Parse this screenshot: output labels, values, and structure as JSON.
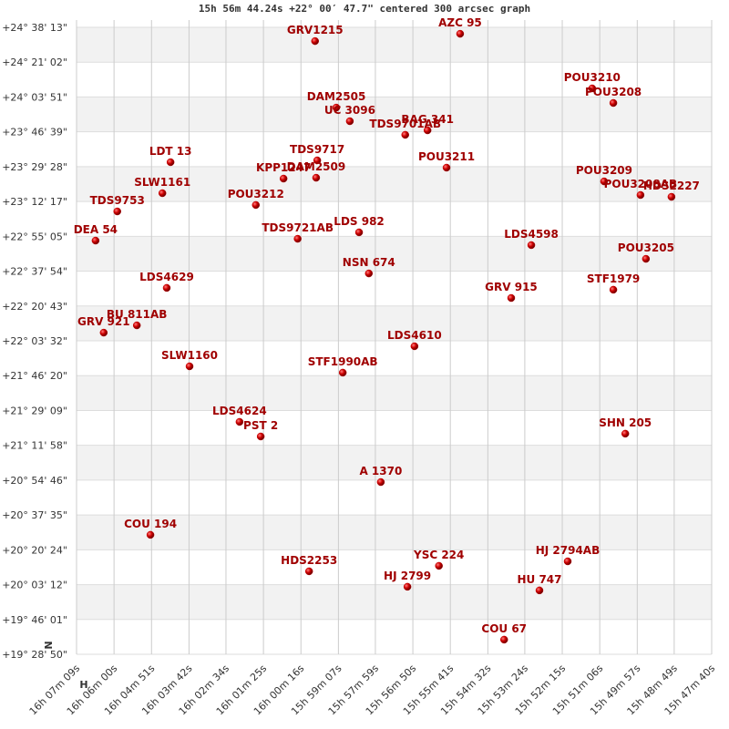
{
  "chart_data": {
    "type": "scatter",
    "title": "15h 56m 44.24s +22° 00′ 47.7\" centered 300 arcsec graph",
    "annotations": [
      "N",
      "H"
    ],
    "color": "#c00000",
    "labels": [
      "GRV1215",
      "AZC  95",
      "POU3210",
      "POU3208",
      "DAM2505",
      "UC 3096",
      "BAG 341",
      "TDS9701AB",
      "TDS9717",
      "DAM2509",
      "KPP1247",
      "LDT  13",
      "POU3211",
      "POU3209",
      "POU3208AB",
      "HDS2227",
      "SLW1161",
      "TDS9753",
      "POU3212",
      "DEA  54",
      "TDS9721AB",
      "LDS 982",
      "LDS4598",
      "POU3205",
      "NSN 674",
      "LDS4629",
      "STF1979",
      "GRV 915",
      "BU  811AB",
      "GRV 921",
      "LDS4610",
      "SLW1160",
      "STF1990AB",
      "LDS4624",
      "PST   2",
      "SHN 205",
      "A  1370",
      "COU 194",
      "HDS2253",
      "YSC 224",
      "HJ 2794AB",
      "HJ 2799",
      "HU  747",
      "COU  67"
    ],
    "x": [
      57590,
      57323,
      57080,
      57041,
      57551,
      57526,
      57383,
      57424,
      57586,
      57588,
      57648,
      57856,
      57348,
      57058,
      56991,
      56934,
      57871,
      57954,
      57699,
      57994,
      57622,
      57509,
      57192,
      56981,
      57491,
      57863,
      57041,
      57229,
      57918,
      57979,
      57407,
      57821,
      57539,
      57729,
      57690,
      57019,
      57469,
      57893,
      57601,
      57362,
      57125,
      57420,
      57177,
      57242
    ],
    "y": [
      24.524,
      24.584,
      24.135,
      24.015,
      23.977,
      23.865,
      23.79,
      23.753,
      23.543,
      23.4,
      23.393,
      23.528,
      23.483,
      23.37,
      23.258,
      23.243,
      23.273,
      23.123,
      23.176,
      22.883,
      22.898,
      22.951,
      22.846,
      22.733,
      22.613,
      22.494,
      22.479,
      22.411,
      22.186,
      22.126,
      22.014,
      21.849,
      21.797,
      21.392,
      21.272,
      21.295,
      20.897,
      20.463,
      20.163,
      20.208,
      20.245,
      20.036,
      20.006,
      19.601
    ],
    "xlim": [
      58029,
      56860
    ],
    "ylim": [
      19.4806,
      24.697
    ],
    "xticks": [
      {
        "value": 58029,
        "label": "16h 07m 09s"
      },
      {
        "value": 57960,
        "label": "16h 06m 00s"
      },
      {
        "value": 57891,
        "label": "16h 04m 51s"
      },
      {
        "value": 57822,
        "label": "16h 03m 42s"
      },
      {
        "value": 57754,
        "label": "16h 02m 34s"
      },
      {
        "value": 57685,
        "label": "16h 01m 25s"
      },
      {
        "value": 57616,
        "label": "16h 00m 16s"
      },
      {
        "value": 57547,
        "label": "15h 59m 07s"
      },
      {
        "value": 57479,
        "label": "15h 57m 59s"
      },
      {
        "value": 57410,
        "label": "15h 56m 50s"
      },
      {
        "value": 57341,
        "label": "15h 55m 41s"
      },
      {
        "value": 57272,
        "label": "15h 54m 32s"
      },
      {
        "value": 57204,
        "label": "15h 53m 24s"
      },
      {
        "value": 57135,
        "label": "15h 52m 15s"
      },
      {
        "value": 57066,
        "label": "15h 51m 06s"
      },
      {
        "value": 56997,
        "label": "15h 49m 57s"
      },
      {
        "value": 56929,
        "label": "15h 48m 49s"
      },
      {
        "value": 56860,
        "label": "15h 47m 40s"
      }
    ],
    "yticks": [
      {
        "value": 24.6369,
        "label": "+24° 38' 13\""
      },
      {
        "value": 24.3506,
        "label": "+24° 21' 02\""
      },
      {
        "value": 24.0642,
        "label": "+24° 03' 51\""
      },
      {
        "value": 23.7775,
        "label": "+23° 46' 39\""
      },
      {
        "value": 23.4911,
        "label": "+23° 29' 28\""
      },
      {
        "value": 23.2047,
        "label": "+23° 12' 17\""
      },
      {
        "value": 22.9181,
        "label": "+22° 55' 05\""
      },
      {
        "value": 22.6317,
        "label": "+22° 37' 54\""
      },
      {
        "value": 22.3453,
        "label": "+22° 20' 43\""
      },
      {
        "value": 22.0589,
        "label": "+22° 03' 32\""
      },
      {
        "value": 21.7722,
        "label": "+21° 46' 20\""
      },
      {
        "value": 21.4858,
        "label": "+21° 29' 09\""
      },
      {
        "value": 21.1994,
        "label": "+21° 11' 58\""
      },
      {
        "value": 20.9128,
        "label": "+20° 54' 46\""
      },
      {
        "value": 20.6264,
        "label": "+20° 37' 35\""
      },
      {
        "value": 20.34,
        "label": "+20° 20' 24\""
      },
      {
        "value": 20.0533,
        "label": "+20° 03' 12\""
      },
      {
        "value": 19.7669,
        "label": "+19° 46' 01\""
      },
      {
        "value": 19.4806,
        "label": "+19° 28' 50\""
      }
    ],
    "grid": true
  }
}
